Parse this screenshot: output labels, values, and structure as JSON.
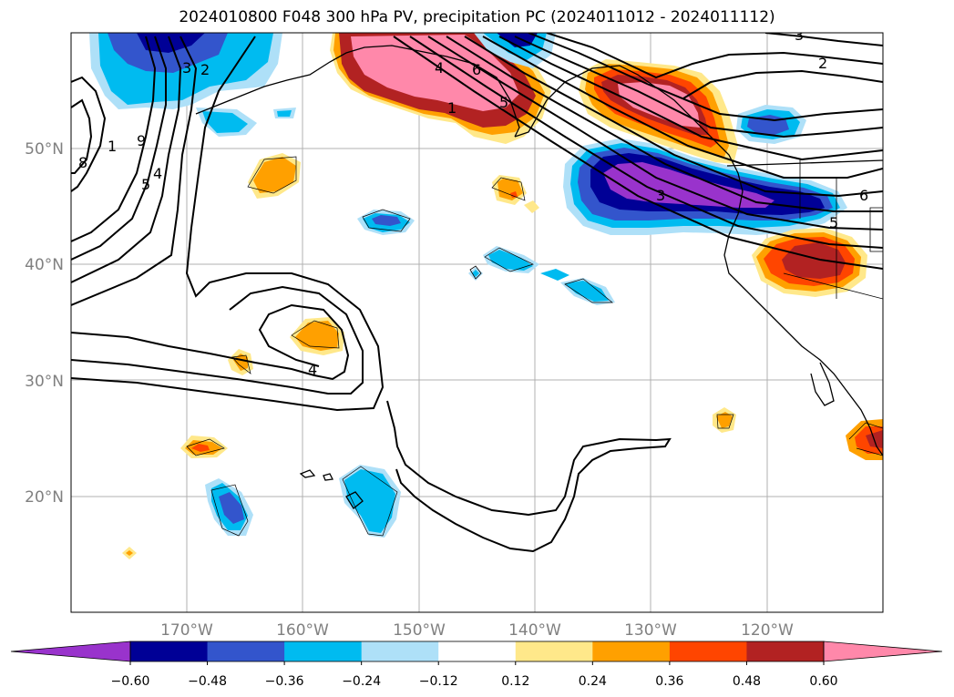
{
  "title": "2024010800 F048 300 hPa PV, precipitation PC (2024011012 - 2024011112)",
  "map": {
    "lon_range": [
      -180,
      -110
    ],
    "lat_range": [
      10,
      60
    ],
    "gridlines": true,
    "lon_ticks": [
      "170°W",
      "160°W",
      "150°W",
      "140°W",
      "130°W",
      "120°W"
    ],
    "lat_ticks": [
      "20°N",
      "30°N",
      "40°N",
      "50°N"
    ],
    "contour_labels": [
      "3",
      "2",
      "4",
      "6",
      "1",
      "5",
      "3",
      "6",
      "5",
      "3",
      "2",
      "1",
      "9",
      "8",
      "5",
      "4",
      "4"
    ]
  },
  "colorbar": {
    "ticks": [
      "−0.60",
      "−0.48",
      "−0.36",
      "−0.24",
      "−0.12",
      "0.12",
      "0.24",
      "0.36",
      "0.48",
      "0.60"
    ],
    "colors": [
      "#9933cc",
      "#000096",
      "#3355cc",
      "#00bbf0",
      "#aee0f8",
      "#ffffff",
      "#ffe88a",
      "#ffa000",
      "#ff4500",
      "#b22222",
      "#ff88aa"
    ],
    "extend": "both"
  }
}
